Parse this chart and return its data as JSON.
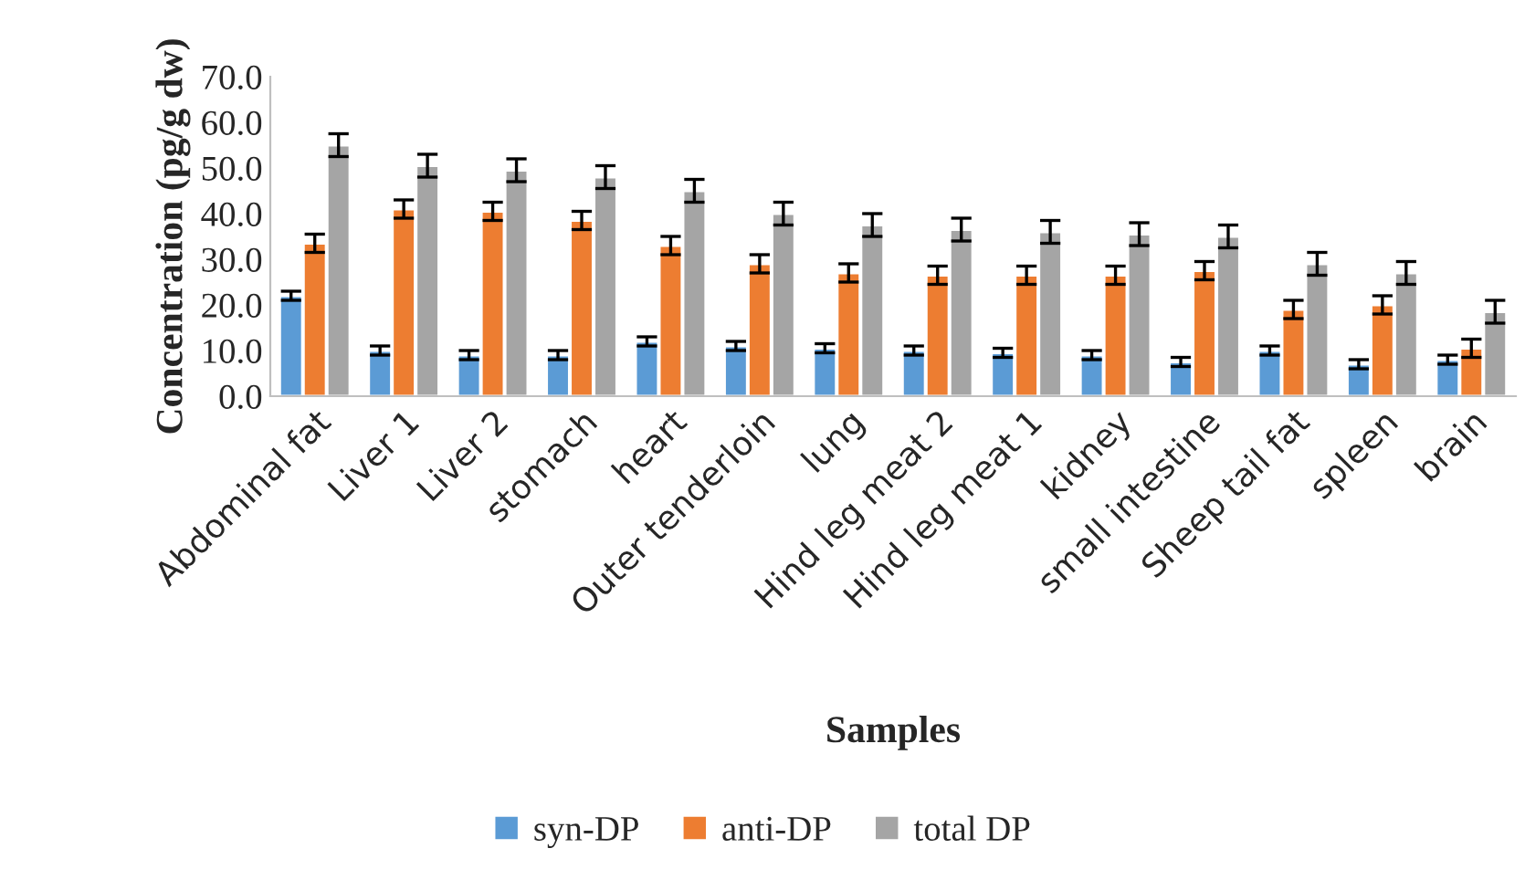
{
  "chart_data": {
    "type": "bar",
    "xlabel": "Samples",
    "ylabel": "Concentration (pg/g dw)",
    "categories": [
      "Abdominal fat",
      "Liver 1",
      "Liver 2",
      "stomach",
      "heart",
      "Outer tenderloin",
      "lung",
      "Hind leg meat 2",
      "Hind leg meat 1",
      "kidney",
      "small intestine",
      "Sheep tail fat",
      "spleen",
      "brain"
    ],
    "series": [
      {
        "name": "syn-DP",
        "color": "#5b9bd5",
        "values": [
          22,
          10,
          9,
          9,
          12,
          11,
          10.5,
          10,
          9.5,
          9,
          7.5,
          10,
          7,
          8
        ],
        "errors": [
          1,
          1,
          1,
          1,
          1,
          1,
          1,
          1,
          1,
          1,
          1,
          1,
          1,
          1
        ]
      },
      {
        "name": "anti-DP",
        "color": "#ed7d31",
        "values": [
          33.5,
          41,
          40.5,
          38.5,
          33,
          29,
          27,
          26.5,
          26.5,
          26.5,
          27.5,
          19,
          20,
          10.5
        ],
        "errors": [
          2,
          2,
          2,
          2,
          2,
          2,
          2,
          2,
          2,
          2,
          2,
          2,
          2,
          2
        ]
      },
      {
        "name": "total DP",
        "color": "#a5a5a5",
        "values": [
          55,
          50.5,
          49.5,
          48,
          45,
          40,
          37.5,
          36.5,
          36,
          35.5,
          35,
          29,
          27,
          18.5
        ],
        "errors": [
          2.5,
          2.5,
          2.5,
          2.5,
          2.5,
          2.5,
          2.5,
          2.5,
          2.5,
          2.5,
          2.5,
          2.5,
          2.5,
          2.5
        ]
      }
    ],
    "ylim": [
      0,
      70
    ],
    "yticks": [
      {
        "value": 0,
        "label": "0.0"
      },
      {
        "value": 10,
        "label": "10.0"
      },
      {
        "value": 20,
        "label": "20.0"
      },
      {
        "value": 30,
        "label": "30.0"
      },
      {
        "value": 40,
        "label": "40.0"
      },
      {
        "value": 50,
        "label": "50.0"
      },
      {
        "value": 60,
        "label": "60.0"
      },
      {
        "value": 70,
        "label": "70.0"
      }
    ],
    "grid": false,
    "legend": "bottom"
  }
}
